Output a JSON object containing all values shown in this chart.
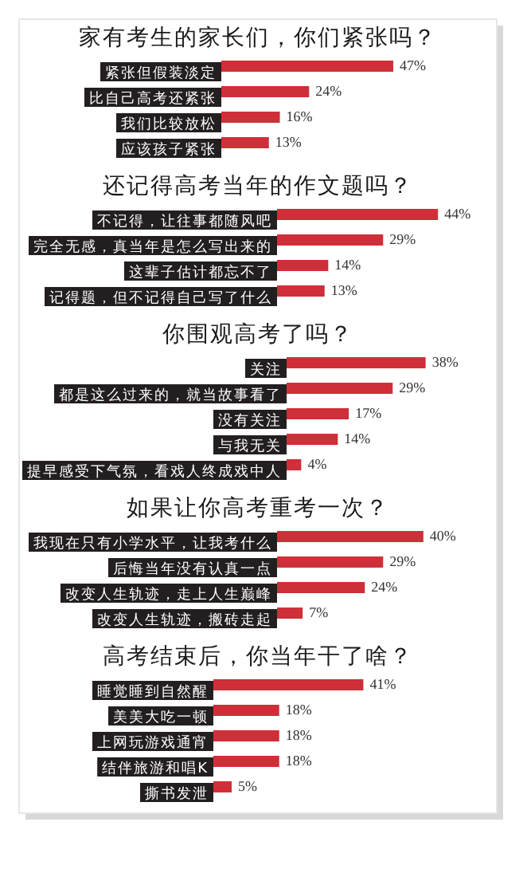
{
  "chart_data": [
    {
      "type": "bar",
      "orientation": "horizontal",
      "title": "家有考生的家长们，你们紧张吗？",
      "categories": [
        "紧张但假装淡定",
        "比自己高考还紧张",
        "我们比较放松",
        "应该孩子紧张"
      ],
      "values": [
        47,
        24,
        16,
        13
      ],
      "value_labels": [
        "47%",
        "24%",
        "16%",
        "13%"
      ],
      "color": "#cf2f38"
    },
    {
      "type": "bar",
      "orientation": "horizontal",
      "title": "还记得高考当年的作文题吗？",
      "categories": [
        "不记得，让往事都随风吧",
        "完全无感，真当年是怎么写出来的",
        "这辈子估计都忘不了",
        "记得题，但不记得自己写了什么"
      ],
      "values": [
        44,
        29,
        14,
        13
      ],
      "value_labels": [
        "44%",
        "29%",
        "14%",
        "13%"
      ],
      "color": "#cf2f38"
    },
    {
      "type": "bar",
      "orientation": "horizontal",
      "title": "你围观高考了吗？",
      "categories": [
        "关注",
        "都是这么过来的，就当故事看了",
        "没有关注",
        "与我无关",
        "提早感受下气氛，看戏人终成戏中人"
      ],
      "values": [
        38,
        29,
        17,
        14,
        4
      ],
      "value_labels": [
        "38%",
        "29%",
        "17%",
        "14%",
        "4%"
      ],
      "color": "#cf2f38"
    },
    {
      "type": "bar",
      "orientation": "horizontal",
      "title": "如果让你高考重考一次？",
      "categories": [
        "我现在只有小学水平，让我考什么",
        "后悔当年没有认真一点",
        "改变人生轨迹，走上人生巅峰",
        "改变人生轨迹，搬砖走起"
      ],
      "values": [
        40,
        29,
        24,
        7
      ],
      "value_labels": [
        "40%",
        "29%",
        "24%",
        "7%"
      ],
      "color": "#cf2f38"
    },
    {
      "type": "bar",
      "orientation": "horizontal",
      "title": "高考结束后，你当年干了啥？",
      "categories": [
        "睡觉睡到自然醒",
        "美美大吃一顿",
        "上网玩游戏通宵",
        "结伴旅游和唱K",
        "撕书发泄"
      ],
      "values": [
        41,
        18,
        18,
        18,
        5
      ],
      "value_labels": [
        "41%",
        "18%",
        "18%",
        "18%",
        "5%"
      ],
      "color": "#cf2f38"
    }
  ]
}
